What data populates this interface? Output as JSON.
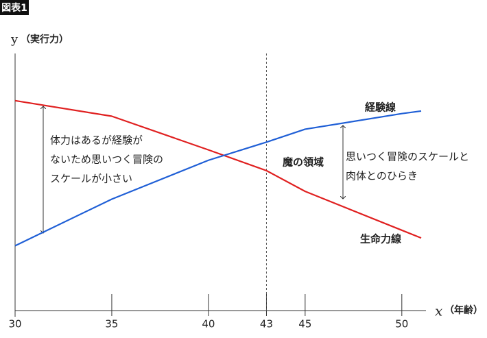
{
  "badge": "図表1",
  "chart_data": {
    "type": "line",
    "y_label": "y",
    "y_label_note": "（実行力）",
    "x_label": "x",
    "x_label_note": "（年齢）",
    "x": [
      30,
      35,
      40,
      43,
      45,
      50,
      51
    ],
    "series": [
      {
        "name": "生命力線",
        "color": "#e02020",
        "values": [
          81,
          75,
          62,
          54,
          46,
          31,
          28
        ]
      },
      {
        "name": "経験線",
        "color": "#1f5fd6",
        "values": [
          25,
          43,
          58,
          65,
          70,
          76,
          77
        ]
      }
    ],
    "xlim": [
      30,
      51
    ],
    "ylim": [
      0,
      100
    ],
    "xticks": [
      30,
      35,
      40,
      43,
      45,
      50
    ],
    "reference_line_x": 43,
    "annotations": {
      "left_gap": [
        "体力はあるが経験が",
        "ないため思いつく冒険の",
        "スケールが小さい"
      ],
      "zone": "魔の領域",
      "right_gap": [
        "思いつく冒険のスケールと",
        "肉体とのひらき"
      ]
    }
  }
}
